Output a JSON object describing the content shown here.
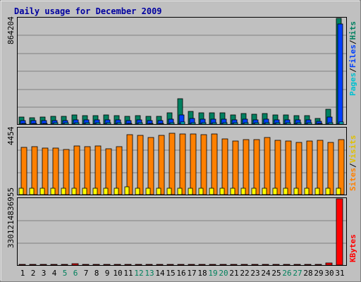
{
  "chart_data": [
    {
      "type": "bar",
      "title": "Daily usage for December 2009",
      "categories": [
        "1",
        "2",
        "3",
        "4",
        "5",
        "6",
        "7",
        "8",
        "9",
        "10",
        "11",
        "12",
        "13",
        "14",
        "15",
        "16",
        "17",
        "18",
        "19",
        "20",
        "21",
        "22",
        "23",
        "24",
        "25",
        "26",
        "27",
        "28",
        "29",
        "30",
        "31"
      ],
      "weekend_days": [
        "5",
        "6",
        "12",
        "13",
        "19",
        "20",
        "26",
        "27"
      ],
      "colors": {
        "hits": "#008060",
        "files": "#0040ff",
        "pages": "#00c0d0",
        "visits": "#ffff00",
        "sites": "#ff8000",
        "kbytes": "#ff0000",
        "weekend_label": "#00805c",
        "title": "#0000a0"
      },
      "panels": [
        {
          "id": "top",
          "ymax_label": "864204",
          "ymax": 864204,
          "legend": [
            "Pages",
            "/",
            "Files",
            "/",
            "Hits"
          ],
          "series": [
            {
              "name": "Hits",
              "values": [
                56000,
                53000,
                56000,
                62000,
                62000,
                77000,
                70000,
                72000,
                77000,
                72000,
                62000,
                67000,
                62000,
                64000,
                95000,
                205000,
                105000,
                95000,
                95000,
                95000,
                77000,
                88000,
                82000,
                88000,
                77000,
                77000,
                67000,
                67000,
                48000,
                123000,
                864204
              ]
            },
            {
              "name": "Files",
              "values": [
                28000,
                26000,
                28000,
                30000,
                30000,
                35000,
                33000,
                34000,
                35000,
                34000,
                30000,
                32000,
                30000,
                31000,
                40000,
                75000,
                45000,
                40000,
                40000,
                40000,
                35000,
                38000,
                36000,
                38000,
                35000,
                35000,
                32000,
                32000,
                25000,
                60000,
                820000
              ]
            },
            {
              "name": "Pages",
              "values": [
                8000,
                7000,
                8000,
                9000,
                9000,
                10000,
                9000,
                9000,
                10000,
                9000,
                8000,
                9000,
                8000,
                8000,
                11000,
                18000,
                12000,
                11000,
                11000,
                11000,
                10000,
                10000,
                10000,
                10000,
                10000,
                10000,
                9000,
                9000,
                7000,
                14000,
                16000
              ]
            }
          ]
        },
        {
          "id": "middle",
          "ymax_label": "4454",
          "ymax": 4454,
          "legend": [
            "Sites",
            "/",
            "Visits"
          ],
          "series": [
            {
              "name": "Sites",
              "values": [
                3170,
                3210,
                3120,
                3150,
                3050,
                3250,
                3210,
                3270,
                3060,
                3230,
                4050,
                3980,
                3850,
                4000,
                4100,
                4070,
                4070,
                4020,
                4080,
                3720,
                3590,
                3700,
                3680,
                3820,
                3640,
                3600,
                3510,
                3620,
                3670,
                3510,
                3700
              ]
            },
            {
              "name": "Visits",
              "values": [
                430,
                440,
                430,
                440,
                440,
                440,
                440,
                440,
                440,
                440,
                500,
                440,
                440,
                440,
                440,
                440,
                440,
                440,
                440,
                440,
                440,
                440,
                440,
                440,
                440,
                440,
                440,
                440,
                440,
                440,
                440
              ]
            }
          ]
        },
        {
          "id": "bottom",
          "ymax_label": "3301214836955",
          "ymax": 3301214836955,
          "legend": [
            "KBytes"
          ],
          "series": [
            {
              "name": "KBytes",
              "values": [
                50000000000,
                20000000000,
                20000000000,
                20000000000,
                50000000000,
                60000000000,
                50000000000,
                40000000000,
                20000000000,
                20000000000,
                20000000000,
                20000000000,
                20000000000,
                40000000000,
                20000000000,
                40000000000,
                20000000000,
                50000000000,
                40000000000,
                20000000000,
                20000000000,
                40000000000,
                40000000000,
                20000000000,
                20000000000,
                20000000000,
                40000000000,
                20000000000,
                20000000000,
                120000000000,
                3301214836955
              ]
            }
          ]
        }
      ]
    }
  ]
}
